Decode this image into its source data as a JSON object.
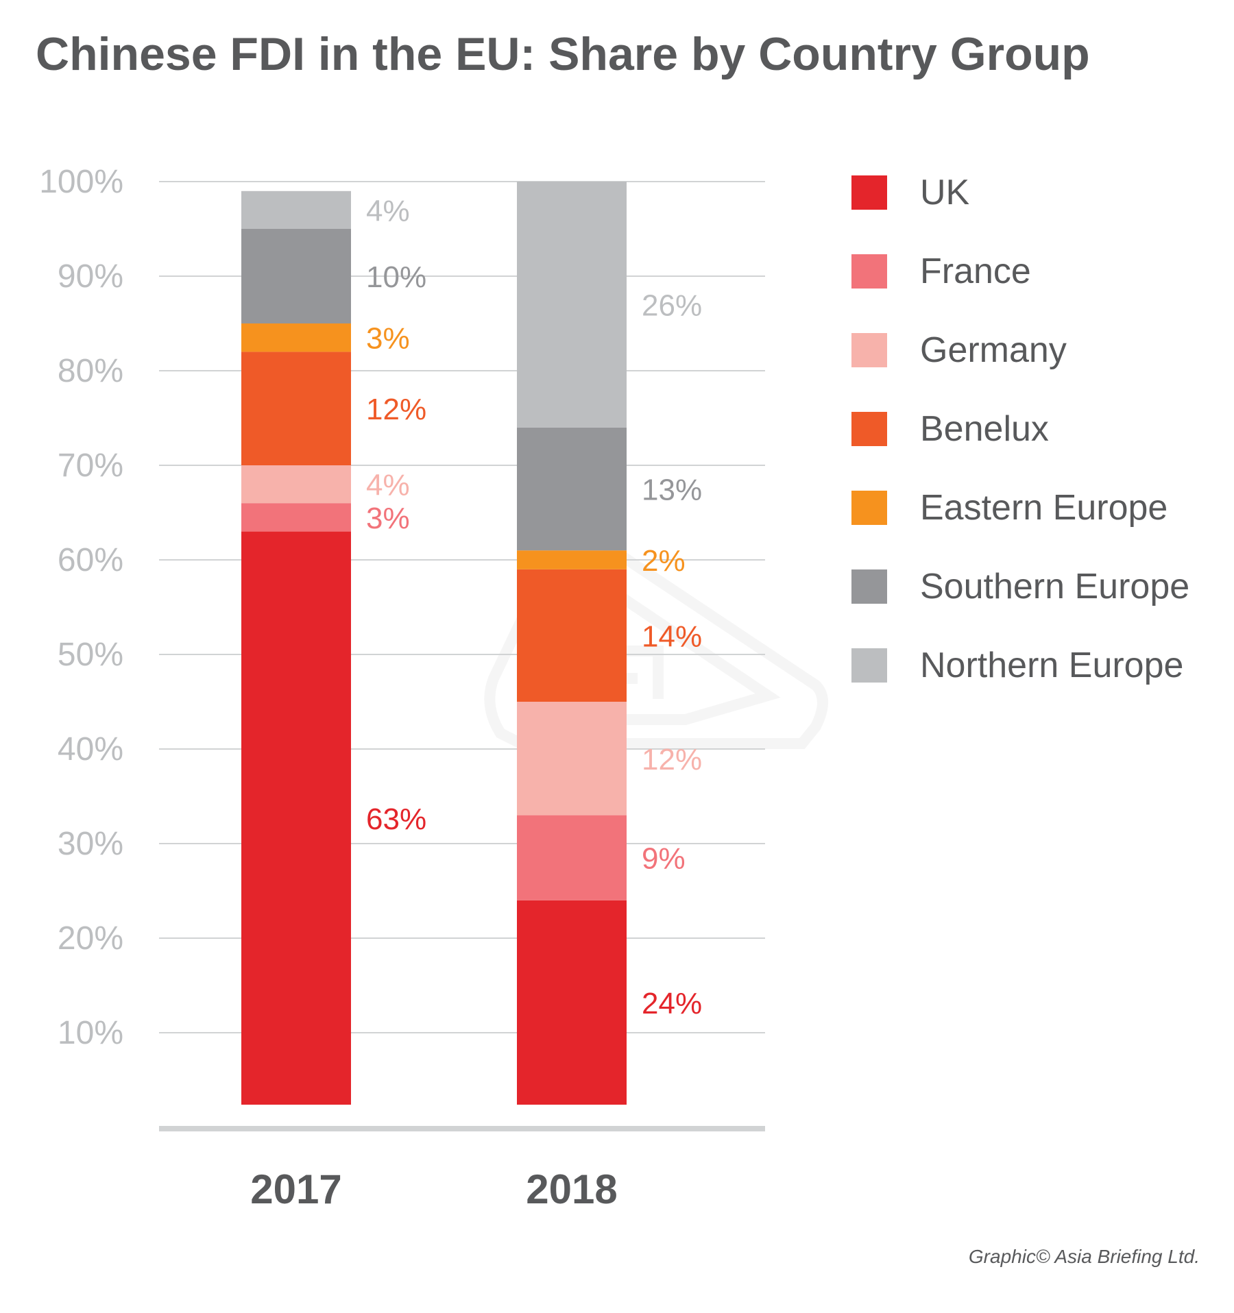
{
  "chart_data": {
    "type": "bar",
    "stacked": true,
    "title": "Chinese FDI in the EU: Share by Country Group",
    "categories": [
      "2017",
      "2018"
    ],
    "series": [
      {
        "name": "UK",
        "color": "#e4252b",
        "values": [
          63,
          24
        ],
        "labels": [
          "63%",
          "24%"
        ]
      },
      {
        "name": "France",
        "color": "#f2737a",
        "values": [
          3,
          9
        ],
        "labels": [
          "3%",
          "9%"
        ]
      },
      {
        "name": "Germany",
        "color": "#f7b2ab",
        "values": [
          4,
          12
        ],
        "labels": [
          "4%",
          "12%"
        ]
      },
      {
        "name": "Benelux",
        "color": "#ef5a28",
        "values": [
          12,
          14
        ],
        "labels": [
          "12%",
          "14%"
        ]
      },
      {
        "name": "Eastern Europe",
        "color": "#f6921e",
        "values": [
          3,
          2
        ],
        "labels": [
          "3%",
          "2%"
        ]
      },
      {
        "name": "Southern Europe",
        "color": "#959699",
        "values": [
          10,
          13
        ],
        "labels": [
          "10%",
          "13%"
        ]
      },
      {
        "name": "Northern Europe",
        "color": "#bcbec0",
        "values": [
          4,
          26
        ],
        "labels": [
          "4%",
          "26%"
        ]
      }
    ],
    "ylim": [
      0,
      100
    ],
    "yticks": [
      10,
      20,
      30,
      40,
      50,
      60,
      70,
      80,
      90,
      100
    ],
    "ytick_labels": [
      "10%",
      "20%",
      "30%",
      "40%",
      "50%",
      "60%",
      "70%",
      "80%",
      "90%",
      "100%"
    ],
    "grid": true,
    "legend": "right",
    "xlabel": "",
    "ylabel": ""
  },
  "credit": "Graphic© Asia Briefing Ltd."
}
